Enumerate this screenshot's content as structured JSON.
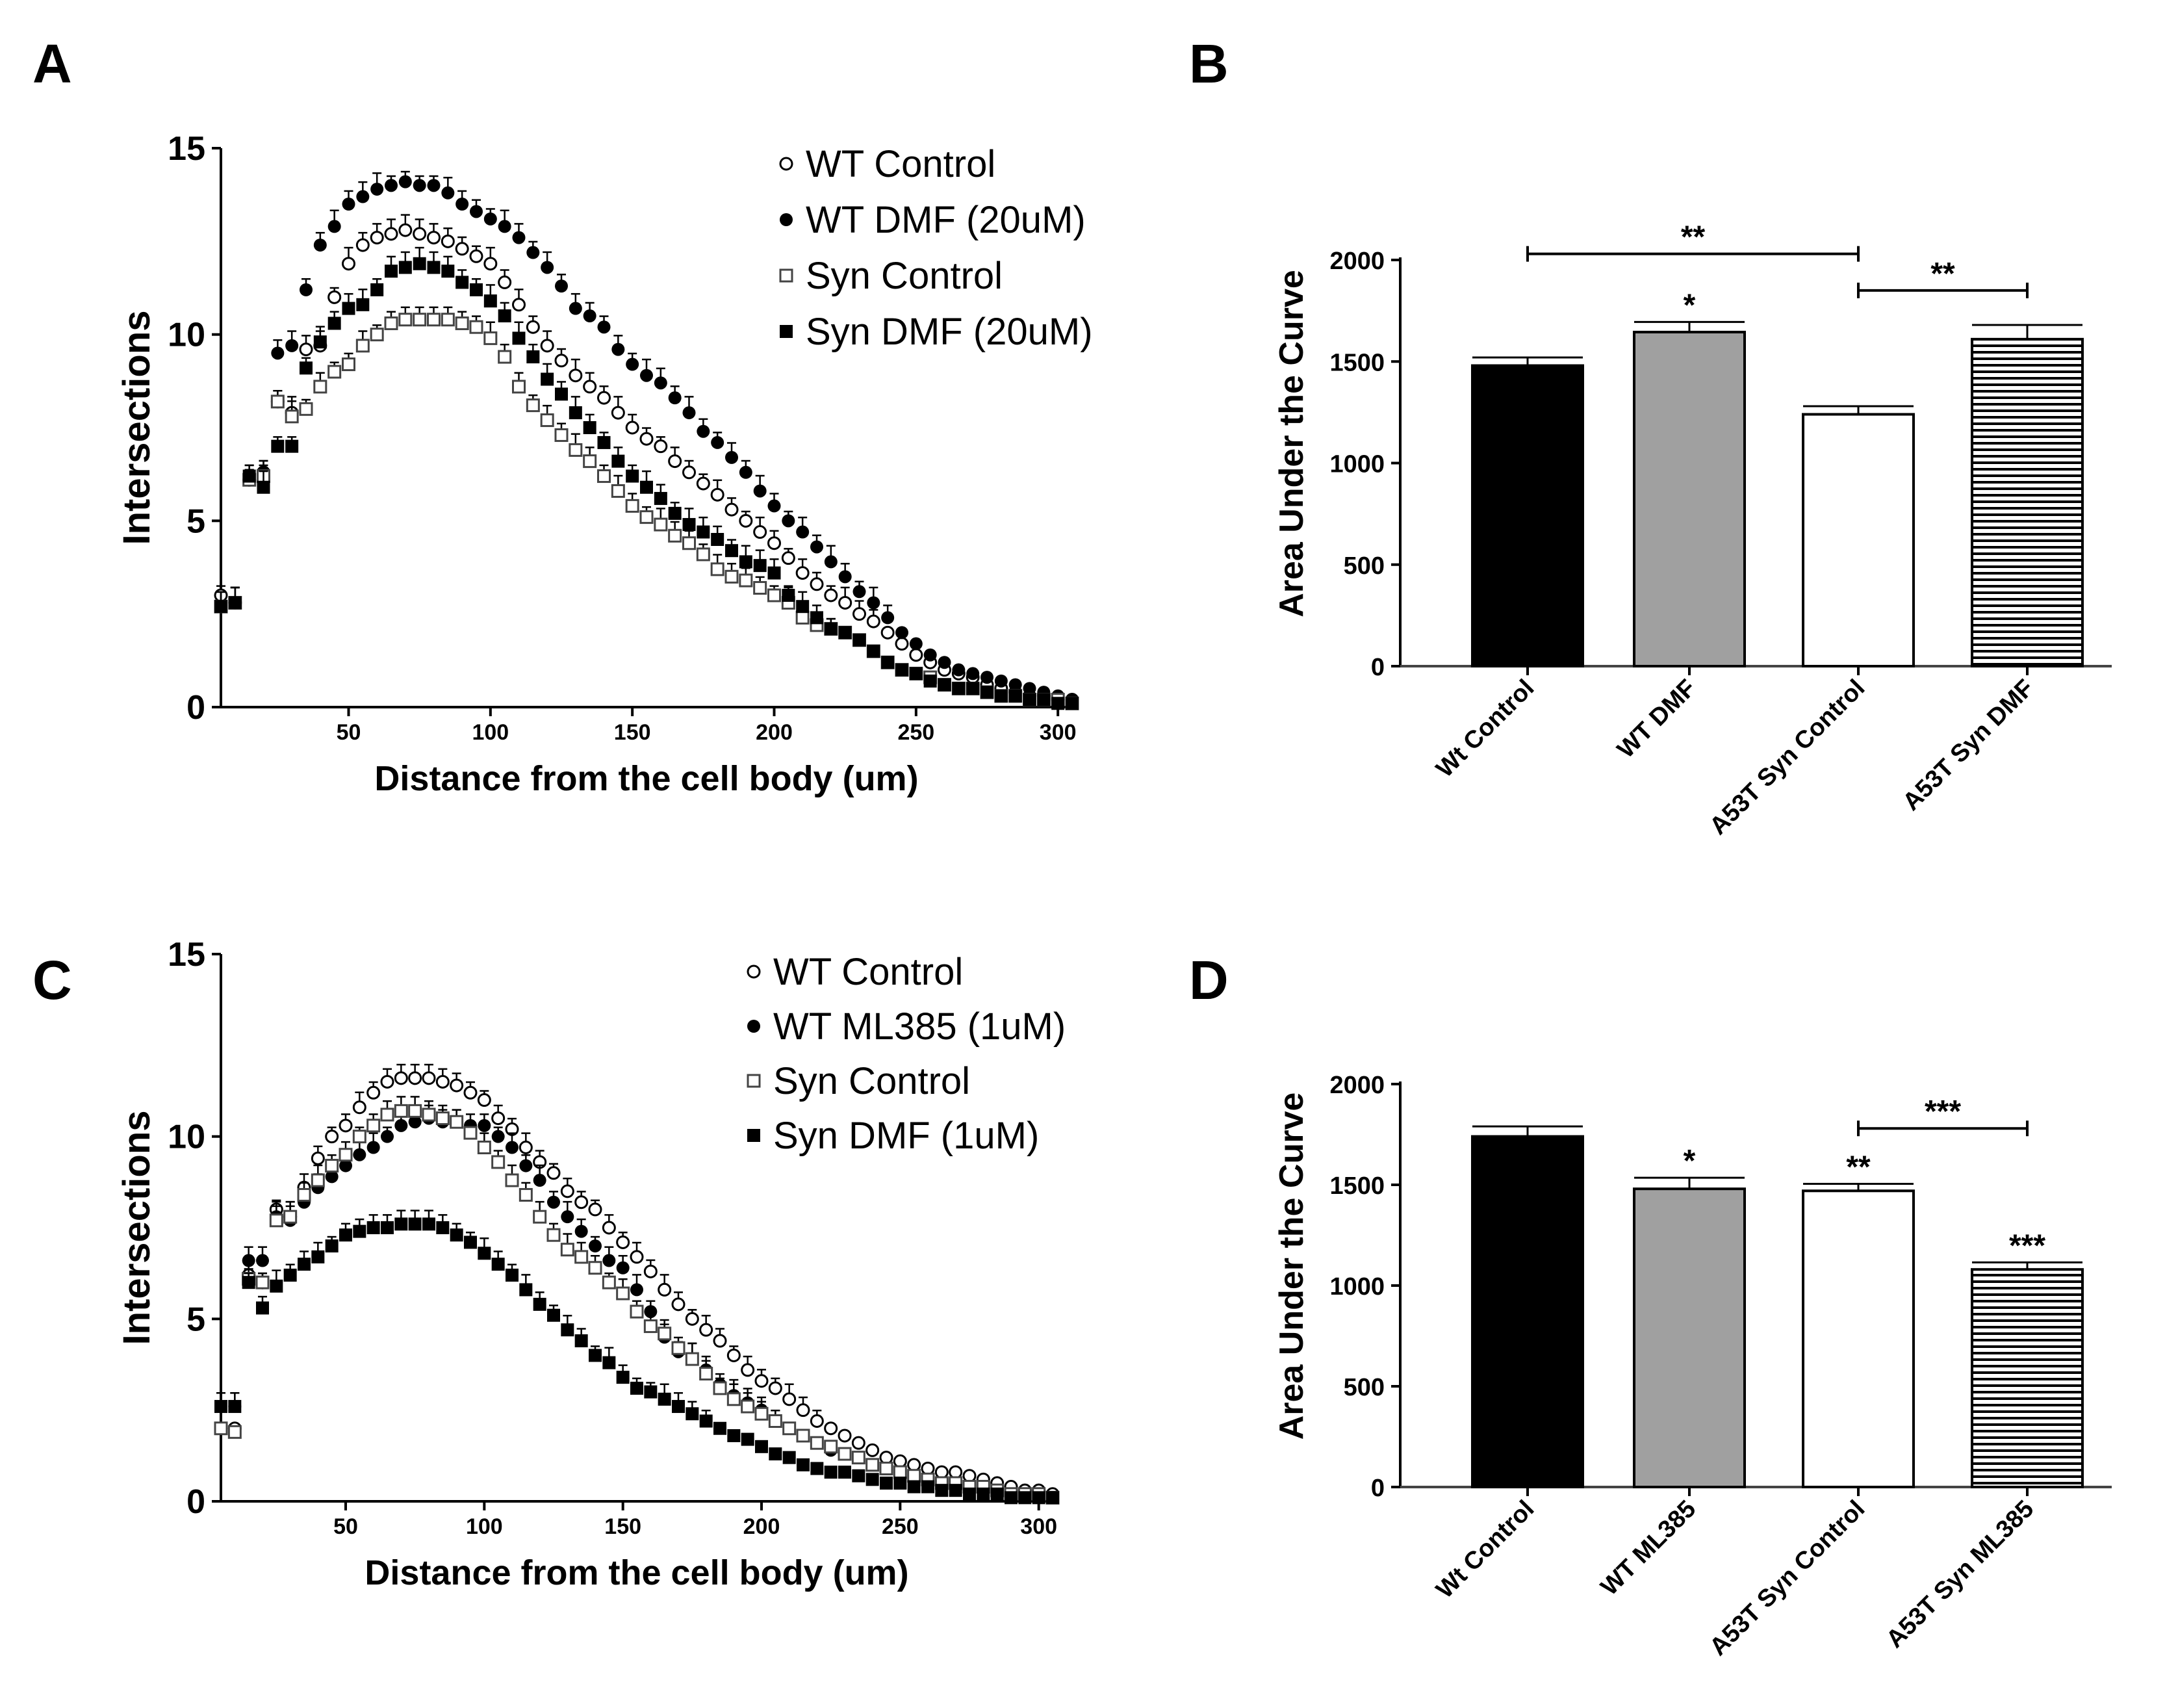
{
  "panel_letters": [
    "A",
    "B",
    "C",
    "D"
  ],
  "chart_data": [
    {
      "panel": "A",
      "type": "scatter",
      "xlabel": "Distance from the cell body  (um)",
      "ylabel": "Intersections",
      "xlim": [
        5,
        305
      ],
      "ylim": [
        0,
        15
      ],
      "xticks": [
        "50",
        "100",
        "150",
        "200",
        "250",
        "300"
      ],
      "yticks": [
        "0",
        "5",
        "10",
        "15"
      ],
      "x": [
        5,
        10,
        15,
        20,
        25,
        30,
        35,
        40,
        45,
        50,
        55,
        60,
        65,
        70,
        75,
        80,
        85,
        90,
        95,
        100,
        105,
        110,
        115,
        120,
        125,
        130,
        135,
        140,
        145,
        150,
        155,
        160,
        165,
        170,
        175,
        180,
        185,
        190,
        195,
        200,
        205,
        210,
        215,
        220,
        225,
        230,
        235,
        240,
        245,
        250,
        255,
        260,
        265,
        270,
        275,
        280,
        285,
        290,
        295,
        300,
        305
      ],
      "series": [
        {
          "name": "WT Control",
          "marker": "open-circle",
          "values": [
            3.0,
            2.8,
            6.1,
            6.3,
            8.2,
            7.9,
            9.6,
            9.7,
            11.0,
            11.9,
            12.4,
            12.6,
            12.7,
            12.8,
            12.7,
            12.6,
            12.5,
            12.3,
            12.1,
            11.9,
            11.4,
            10.8,
            10.2,
            9.7,
            9.3,
            8.9,
            8.6,
            8.3,
            7.9,
            7.5,
            7.2,
            7.0,
            6.6,
            6.3,
            6.0,
            5.7,
            5.3,
            5.0,
            4.7,
            4.4,
            4.0,
            3.6,
            3.3,
            3.0,
            2.8,
            2.5,
            2.3,
            2.0,
            1.7,
            1.4,
            1.2,
            1.0,
            0.9,
            0.8,
            0.6,
            0.5,
            0.4,
            0.3,
            0.3,
            0.2,
            0.2
          ]
        },
        {
          "name": "WT DMF (20uM)",
          "marker": "filled-circle",
          "values": [
            2.7,
            2.8,
            6.2,
            6.3,
            9.5,
            9.7,
            11.2,
            12.4,
            12.9,
            13.5,
            13.7,
            13.9,
            14.0,
            14.1,
            14.0,
            14.0,
            13.8,
            13.5,
            13.3,
            13.1,
            12.9,
            12.6,
            12.2,
            11.8,
            11.3,
            10.7,
            10.5,
            10.2,
            9.6,
            9.2,
            8.9,
            8.7,
            8.3,
            7.9,
            7.4,
            7.1,
            6.7,
            6.3,
            5.8,
            5.4,
            5.0,
            4.7,
            4.3,
            3.9,
            3.5,
            3.1,
            2.8,
            2.4,
            2.0,
            1.7,
            1.4,
            1.2,
            1.0,
            0.9,
            0.8,
            0.7,
            0.6,
            0.5,
            0.4,
            0.3,
            0.2
          ]
        },
        {
          "name": "Syn Control",
          "marker": "open-square",
          "values": [
            2.7,
            2.8,
            6.1,
            6.2,
            8.2,
            7.8,
            8.0,
            8.6,
            9.0,
            9.2,
            9.7,
            10.0,
            10.3,
            10.4,
            10.4,
            10.4,
            10.4,
            10.3,
            10.2,
            9.9,
            9.4,
            8.6,
            8.1,
            7.7,
            7.3,
            6.9,
            6.6,
            6.2,
            5.8,
            5.4,
            5.1,
            4.9,
            4.6,
            4.4,
            4.1,
            3.7,
            3.5,
            3.4,
            3.2,
            3.0,
            2.8,
            2.4,
            2.2,
            2.1,
            2.0,
            1.8,
            1.5,
            1.2,
            1.0,
            0.9,
            0.8,
            0.6,
            0.5,
            0.5,
            0.4,
            0.3,
            0.3,
            0.2,
            0.2,
            0.2,
            0.1
          ]
        },
        {
          "name": "Syn DMF (20uM)",
          "marker": "filled-square",
          "values": [
            2.7,
            2.8,
            6.2,
            5.9,
            7.0,
            7.0,
            9.1,
            9.8,
            10.3,
            10.7,
            10.8,
            11.2,
            11.7,
            11.8,
            11.9,
            11.8,
            11.7,
            11.4,
            11.2,
            10.9,
            10.5,
            9.9,
            9.4,
            8.8,
            8.4,
            7.9,
            7.5,
            7.1,
            6.6,
            6.2,
            5.9,
            5.6,
            5.2,
            4.9,
            4.7,
            4.5,
            4.2,
            3.9,
            3.8,
            3.6,
            3.0,
            2.7,
            2.4,
            2.1,
            2.0,
            1.8,
            1.5,
            1.2,
            1.0,
            0.9,
            0.7,
            0.6,
            0.5,
            0.5,
            0.4,
            0.3,
            0.3,
            0.2,
            0.2,
            0.1,
            0.1
          ]
        }
      ]
    },
    {
      "panel": "B",
      "type": "bar",
      "ylabel": "Area Under the Curve",
      "ylim": [
        0,
        2000
      ],
      "yticks": [
        "0",
        "500",
        "1000",
        "1500",
        "2000"
      ],
      "categories": [
        "Wt Control",
        "WT DMF",
        "A53T Syn Control",
        "A53T Syn DMF"
      ],
      "values": [
        1480,
        1645,
        1240,
        1610
      ],
      "errors": [
        40,
        50,
        40,
        70
      ],
      "fills": [
        "black",
        "gray",
        "white",
        "hlines"
      ],
      "bar_annotations": [
        "",
        "*",
        "",
        ""
      ],
      "brackets": [
        {
          "from": 0,
          "to": 2,
          "label": "**",
          "level": 2030
        },
        {
          "from": 2,
          "to": 3,
          "label": "**",
          "level": 1850
        }
      ]
    },
    {
      "panel": "C",
      "type": "scatter",
      "xlabel": "Distance from the cell body  (um)",
      "ylabel": "Intersections",
      "xlim": [
        5,
        305
      ],
      "ylim": [
        0,
        15
      ],
      "xticks": [
        "50",
        "100",
        "150",
        "200",
        "250",
        "300"
      ],
      "yticks": [
        "0",
        "5",
        "10",
        "15"
      ],
      "x": [
        5,
        10,
        15,
        20,
        25,
        30,
        35,
        40,
        45,
        50,
        55,
        60,
        65,
        70,
        75,
        80,
        85,
        90,
        95,
        100,
        105,
        110,
        115,
        120,
        125,
        130,
        135,
        140,
        145,
        150,
        155,
        160,
        165,
        170,
        175,
        180,
        185,
        190,
        195,
        200,
        205,
        210,
        215,
        220,
        225,
        230,
        235,
        240,
        245,
        250,
        255,
        260,
        265,
        270,
        275,
        280,
        285,
        290,
        295,
        300,
        305
      ],
      "series": [
        {
          "name": "WT Control",
          "marker": "open-circle",
          "values": [
            2.0,
            2.0,
            6.2,
            6.0,
            8.0,
            7.8,
            8.6,
            9.4,
            10.0,
            10.3,
            10.8,
            11.2,
            11.5,
            11.6,
            11.6,
            11.6,
            11.5,
            11.4,
            11.2,
            11.0,
            10.5,
            10.2,
            9.7,
            9.3,
            9.0,
            8.5,
            8.2,
            8.0,
            7.5,
            7.1,
            6.7,
            6.3,
            5.8,
            5.4,
            5.0,
            4.7,
            4.4,
            4.0,
            3.6,
            3.3,
            3.1,
            2.8,
            2.5,
            2.2,
            2.0,
            1.8,
            1.6,
            1.4,
            1.2,
            1.1,
            1.0,
            0.9,
            0.8,
            0.8,
            0.7,
            0.6,
            0.5,
            0.4,
            0.3,
            0.3,
            0.2
          ]
        },
        {
          "name": "WT ML385 (1uM)",
          "marker": "filled-circle",
          "values": [
            2.6,
            2.6,
            6.6,
            6.6,
            7.8,
            7.7,
            8.2,
            8.6,
            8.9,
            9.2,
            9.5,
            9.7,
            10.0,
            10.3,
            10.4,
            10.5,
            10.4,
            10.4,
            10.3,
            10.3,
            10.0,
            9.7,
            9.2,
            8.8,
            8.2,
            7.8,
            7.4,
            7.0,
            6.6,
            6.4,
            5.8,
            5.2,
            4.5,
            4.1,
            3.9,
            3.6,
            3.2,
            2.9,
            2.7,
            2.5,
            2.2,
            2.0,
            1.8,
            1.6,
            1.4,
            1.3,
            1.2,
            1.0,
            0.9,
            0.8,
            0.7,
            0.6,
            0.5,
            0.4,
            0.4,
            0.3,
            0.3,
            0.2,
            0.2,
            0.2,
            0.1
          ]
        },
        {
          "name": "Syn Control",
          "marker": "open-square",
          "values": [
            2.0,
            1.9,
            6.1,
            6.0,
            7.7,
            7.8,
            8.4,
            8.8,
            9.2,
            9.5,
            10.0,
            10.3,
            10.6,
            10.7,
            10.7,
            10.6,
            10.5,
            10.4,
            10.1,
            9.7,
            9.3,
            8.8,
            8.4,
            7.8,
            7.3,
            6.9,
            6.7,
            6.4,
            6.0,
            5.7,
            5.2,
            4.8,
            4.6,
            4.2,
            3.9,
            3.5,
            3.1,
            2.8,
            2.6,
            2.4,
            2.2,
            2.0,
            1.8,
            1.6,
            1.5,
            1.3,
            1.2,
            1.0,
            0.9,
            0.8,
            0.7,
            0.6,
            0.5,
            0.5,
            0.4,
            0.4,
            0.3,
            0.2,
            0.2,
            0.2,
            0.1
          ]
        },
        {
          "name": "Syn DMF (1uM)",
          "marker": "filled-square",
          "values": [
            2.6,
            2.6,
            6.0,
            5.3,
            5.9,
            6.2,
            6.5,
            6.7,
            7.0,
            7.3,
            7.4,
            7.5,
            7.5,
            7.6,
            7.6,
            7.6,
            7.5,
            7.3,
            7.1,
            6.8,
            6.5,
            6.2,
            5.8,
            5.4,
            5.1,
            4.7,
            4.4,
            4.0,
            3.8,
            3.4,
            3.1,
            3.0,
            2.8,
            2.6,
            2.4,
            2.2,
            2.0,
            1.8,
            1.7,
            1.5,
            1.3,
            1.2,
            1.0,
            0.9,
            0.8,
            0.8,
            0.7,
            0.6,
            0.5,
            0.5,
            0.4,
            0.4,
            0.3,
            0.3,
            0.2,
            0.2,
            0.2,
            0.1,
            0.1,
            0.1,
            0.1
          ]
        }
      ]
    },
    {
      "panel": "D",
      "type": "bar",
      "ylabel": "Area Under the Curve",
      "ylim": [
        0,
        2000
      ],
      "yticks": [
        "0",
        "500",
        "1000",
        "1500",
        "2000"
      ],
      "categories": [
        "Wt Control",
        "WT ML385",
        "A53T Syn Control",
        "A53T Syn ML385"
      ],
      "values": [
        1740,
        1480,
        1470,
        1080
      ],
      "errors": [
        50,
        55,
        35,
        35
      ],
      "fills": [
        "black",
        "gray",
        "white",
        "hlines"
      ],
      "bar_annotations": [
        "",
        "*",
        "**",
        "***"
      ],
      "brackets": [
        {
          "from": 2,
          "to": 3,
          "label": "***",
          "level": 1780
        }
      ]
    }
  ]
}
